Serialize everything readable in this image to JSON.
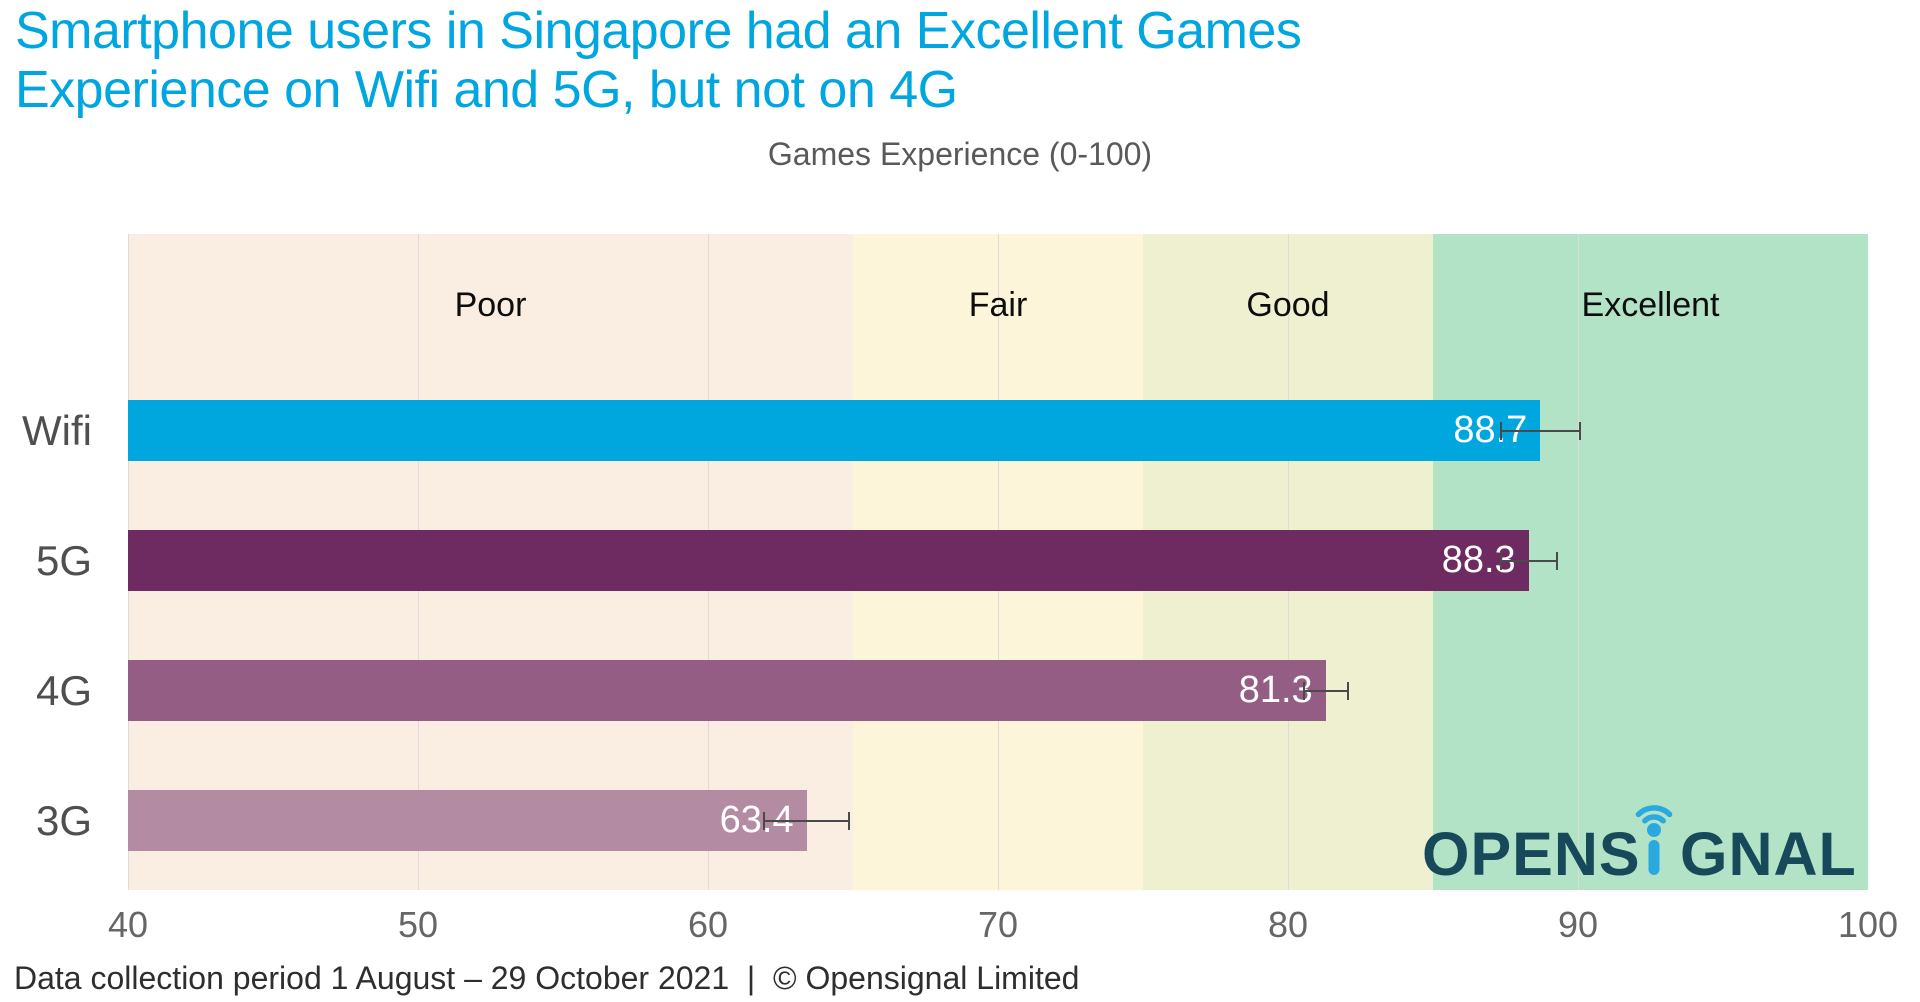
{
  "page": {
    "title_lines": [
      "Smartphone users in Singapore had an Excellent Games",
      "Experience on Wifi and 5G, but not on 4G"
    ],
    "footer": "Data collection period 1 August – 29 October 2021  |  © Opensignal Limited"
  },
  "chart_data": {
    "type": "bar",
    "orientation": "horizontal",
    "title": "Games Experience (0-100)",
    "categories": [
      "Wifi",
      "5G",
      "4G",
      "3G"
    ],
    "values": [
      88.7,
      88.3,
      81.3,
      63.4
    ],
    "errors": [
      1.4,
      1.0,
      0.8,
      1.5
    ],
    "bar_colors": [
      "#00A7DE",
      "#6E2B62",
      "#935D84",
      "#B38CA4"
    ],
    "value_label_color": "#ffffff",
    "xlim": [
      40,
      100
    ],
    "xticks": [
      40,
      50,
      60,
      70,
      80,
      90,
      100
    ],
    "grid": true,
    "legend": "none",
    "zones": [
      {
        "label": "Poor",
        "from": 40,
        "to": 65,
        "color": "#FAEDE2"
      },
      {
        "label": "Fair",
        "from": 65,
        "to": 75,
        "color": "#FCF5D9"
      },
      {
        "label": "Good",
        "from": 75,
        "to": 85,
        "color": "#EFF0D0"
      },
      {
        "label": "Excellent",
        "from": 85,
        "to": 100,
        "color": "#B3E3C7"
      }
    ]
  },
  "branding": {
    "logo_pre": "OPENS",
    "logo_post": "GNAL",
    "logo_color": "#17495A",
    "logo_accent": "#2AA9E0"
  },
  "colors": {
    "title": "#00A6DF",
    "gridline": "#DCDCDC",
    "error_bar": "#4A4A4A"
  }
}
